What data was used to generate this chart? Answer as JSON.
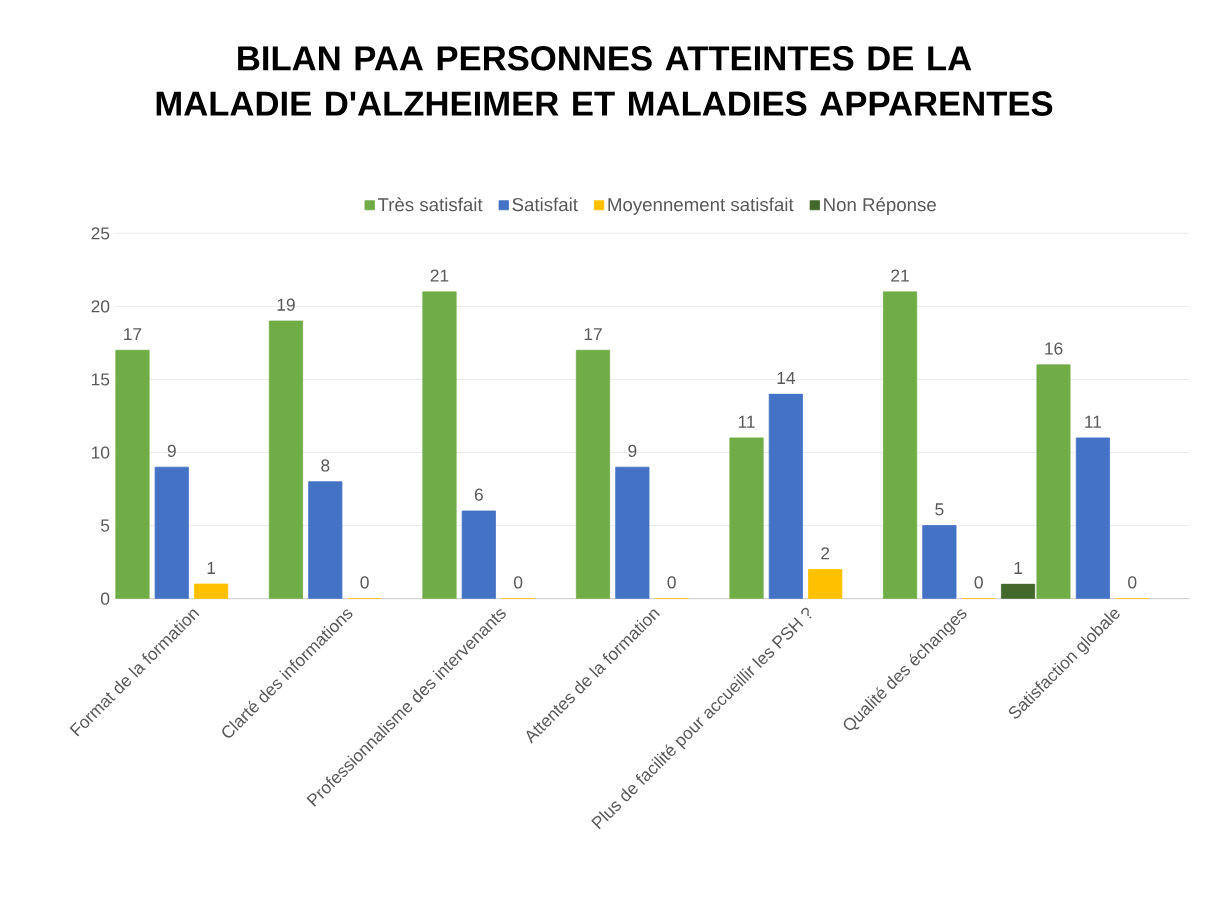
{
  "chart_data": {
    "type": "bar",
    "title": "BILAN PAA PERSONNES ATTEINTES DE LA MALADIE D'ALZHEIMER ET MALADIES APPARENTES",
    "categories": [
      "Format de la formation",
      "Clarté des informations",
      "Professionnalisme des intervenants",
      "Attentes de la formation",
      "Plus de facilité pour accueillir les PSH ?",
      "Qualité des échanges",
      "Satisfaction globale"
    ],
    "series": [
      {
        "name": "Très satisfait",
        "color": "#70ad47",
        "values": [
          17,
          19,
          21,
          17,
          11,
          21,
          16
        ]
      },
      {
        "name": "Satisfait",
        "color": "#4472c4",
        "values": [
          9,
          8,
          6,
          9,
          14,
          5,
          11
        ]
      },
      {
        "name": "Moyennement satisfait",
        "color": "#ffc000",
        "values": [
          1,
          0,
          0,
          0,
          2,
          0,
          0
        ]
      },
      {
        "name": "Non Réponse",
        "color": "#43682b",
        "values": [
          null,
          null,
          null,
          null,
          null,
          1,
          null
        ]
      }
    ],
    "ylim": [
      0,
      25
    ],
    "yticks": [
      0,
      5,
      10,
      15,
      20,
      25
    ],
    "grid": "y",
    "legend": "top",
    "data_labels": true
  }
}
